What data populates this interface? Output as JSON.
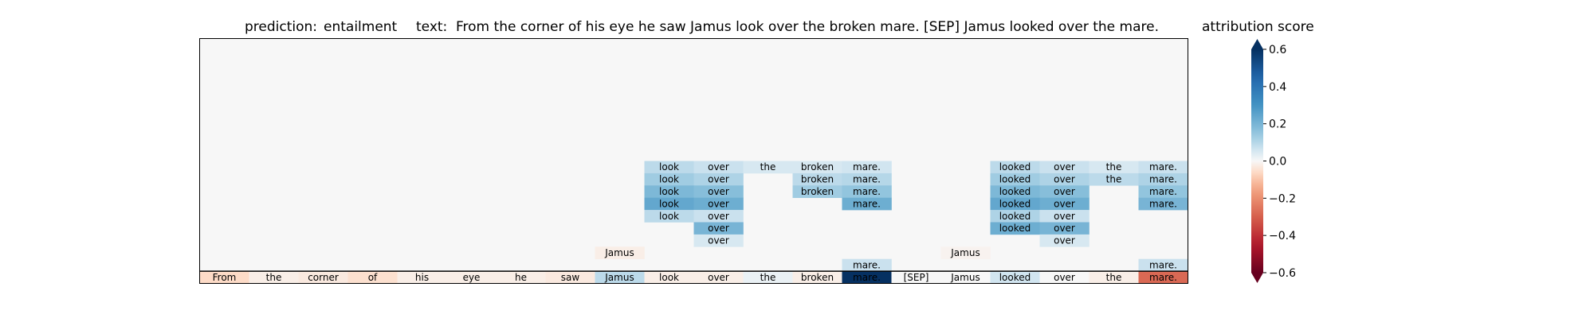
{
  "chart_data": {
    "type": "heatmap",
    "title_prediction_label": "prediction:",
    "title_prediction_value": "entailment",
    "title_text_label": "text:",
    "title_text_value": "From the corner of his eye he saw Jamus look over the broken mare. [SEP] Jamus looked over the mare.",
    "tokens": [
      "From",
      "the",
      "corner",
      "of",
      "his",
      "eye",
      "he",
      "saw",
      "Jamus",
      "look",
      "over",
      "the",
      "broken",
      "mare.",
      "[SEP]",
      "Jamus",
      "looked",
      "over",
      "the",
      "mare."
    ],
    "rows": 10,
    "background_value": 0.0,
    "base_row": [
      -0.06,
      -0.02,
      -0.03,
      -0.05,
      -0.02,
      -0.02,
      -0.02,
      -0.03,
      0.09,
      -0.02,
      -0.02,
      0.02,
      -0.02,
      0.62,
      0.0,
      0.0,
      0.06,
      0.0,
      -0.02,
      -0.28
    ],
    "cells": [
      {
        "row": 0,
        "col": 9,
        "token": "look",
        "value": 0.09
      },
      {
        "row": 0,
        "col": 10,
        "token": "over",
        "value": 0.07
      },
      {
        "row": 0,
        "col": 11,
        "token": "the",
        "value": 0.05
      },
      {
        "row": 0,
        "col": 12,
        "token": "broken",
        "value": 0.05
      },
      {
        "row": 0,
        "col": 13,
        "token": "mare.",
        "value": 0.06
      },
      {
        "row": 0,
        "col": 16,
        "token": "looked",
        "value": 0.09
      },
      {
        "row": 0,
        "col": 17,
        "token": "over",
        "value": 0.07
      },
      {
        "row": 0,
        "col": 18,
        "token": "the",
        "value": 0.05
      },
      {
        "row": 0,
        "col": 19,
        "token": "mare.",
        "value": 0.07
      },
      {
        "row": 1,
        "col": 9,
        "token": "look",
        "value": 0.13
      },
      {
        "row": 1,
        "col": 10,
        "token": "over",
        "value": 0.11
      },
      {
        "row": 1,
        "col": 12,
        "token": "broken",
        "value": 0.09
      },
      {
        "row": 1,
        "col": 13,
        "token": "mare.",
        "value": 0.1
      },
      {
        "row": 1,
        "col": 16,
        "token": "looked",
        "value": 0.13
      },
      {
        "row": 1,
        "col": 17,
        "token": "over",
        "value": 0.11
      },
      {
        "row": 1,
        "col": 18,
        "token": "the",
        "value": 0.09
      },
      {
        "row": 1,
        "col": 19,
        "token": "mare.",
        "value": 0.11
      },
      {
        "row": 2,
        "col": 9,
        "token": "look",
        "value": 0.19
      },
      {
        "row": 2,
        "col": 10,
        "token": "over",
        "value": 0.17
      },
      {
        "row": 2,
        "col": 12,
        "token": "broken",
        "value": 0.13
      },
      {
        "row": 2,
        "col": 13,
        "token": "mare.",
        "value": 0.15
      },
      {
        "row": 2,
        "col": 16,
        "token": "looked",
        "value": 0.19
      },
      {
        "row": 2,
        "col": 17,
        "token": "over",
        "value": 0.17
      },
      {
        "row": 2,
        "col": 19,
        "token": "mare.",
        "value": 0.15
      },
      {
        "row": 3,
        "col": 9,
        "token": "look",
        "value": 0.24
      },
      {
        "row": 3,
        "col": 10,
        "token": "over",
        "value": 0.22
      },
      {
        "row": 3,
        "col": 13,
        "token": "mare.",
        "value": 0.22
      },
      {
        "row": 3,
        "col": 16,
        "token": "looked",
        "value": 0.24
      },
      {
        "row": 3,
        "col": 17,
        "token": "over",
        "value": 0.22
      },
      {
        "row": 3,
        "col": 19,
        "token": "mare.",
        "value": 0.2
      },
      {
        "row": 4,
        "col": 9,
        "token": "look",
        "value": 0.09
      },
      {
        "row": 4,
        "col": 10,
        "token": "over",
        "value": 0.07
      },
      {
        "row": 4,
        "col": 16,
        "token": "looked",
        "value": 0.11
      },
      {
        "row": 4,
        "col": 17,
        "token": "over",
        "value": 0.07
      },
      {
        "row": 5,
        "col": 10,
        "token": "over",
        "value": 0.2
      },
      {
        "row": 5,
        "col": 16,
        "token": "looked",
        "value": 0.22
      },
      {
        "row": 5,
        "col": 17,
        "token": "over",
        "value": 0.2
      },
      {
        "row": 6,
        "col": 10,
        "token": "over",
        "value": 0.05
      },
      {
        "row": 6,
        "col": 17,
        "token": "over",
        "value": 0.05
      },
      {
        "row": 7,
        "col": 8,
        "token": "Jamus",
        "value": -0.02
      },
      {
        "row": 7,
        "col": 15,
        "token": "Jamus",
        "value": -0.01
      },
      {
        "row": 8,
        "col": 13,
        "token": "mare.",
        "value": 0.07
      },
      {
        "row": 8,
        "col": 19,
        "token": "mare.",
        "value": 0.07
      }
    ],
    "colorbar": {
      "label": "attribution score",
      "vmin": -0.6,
      "vmax": 0.6,
      "colormap": "RdBu",
      "ticks": [
        -0.6,
        -0.4,
        -0.2,
        0.0,
        0.2,
        0.4,
        0.6
      ],
      "tick_labels": [
        "−0.6",
        "−0.4",
        "−0.2",
        "0.0",
        "0.2",
        "0.4",
        "0.6"
      ]
    }
  }
}
